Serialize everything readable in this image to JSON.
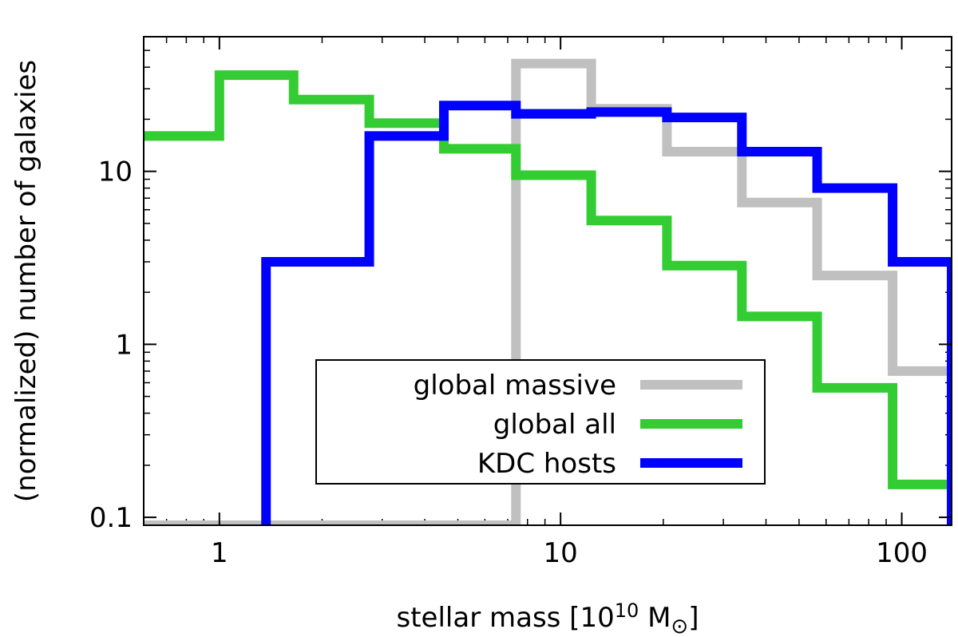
{
  "chart_data": {
    "type": "histogram-step",
    "xscale": "log",
    "yscale": "log",
    "xlim": [
      0.6,
      140
    ],
    "ylim": [
      0.09,
      60
    ],
    "xticks": [
      1,
      10,
      100
    ],
    "xtick_labels": [
      "1",
      "10",
      "100"
    ],
    "yticks": [
      0.1,
      1,
      10
    ],
    "ytick_labels": [
      "0.1",
      "1",
      "10"
    ],
    "xlabel_prefix": "stellar mass [10",
    "xlabel_exponent": "10",
    "xlabel_unit": " M",
    "xlabel_symbol": "⊙",
    "xlabel_suffix": "]",
    "ylabel": "(normalized) number of galaxies",
    "legend_location": "lower center",
    "series": [
      {
        "name": "global massive",
        "color": "#c0c0c0",
        "edges": [
          0.6,
          7.4,
          12.3,
          20.5,
          34.0,
          56.5,
          94.0,
          140
        ],
        "values": [
          0.09,
          42,
          23,
          13,
          6.6,
          2.5,
          0.7
        ]
      },
      {
        "name": "global all",
        "color": "#33cc33",
        "edges": [
          0.6,
          1.0,
          1.65,
          2.75,
          4.55,
          7.4,
          12.3,
          20.5,
          34.0,
          56.5,
          94.0,
          140
        ],
        "values": [
          16,
          36,
          26,
          19,
          13.5,
          9.5,
          5.2,
          2.85,
          1.45,
          0.56,
          0.155
        ]
      },
      {
        "name": "KDC hosts",
        "color": "#0000ff",
        "edges": [
          1.37,
          2.75,
          4.55,
          7.4,
          12.3,
          20.5,
          34.0,
          56.5,
          94.0,
          140
        ],
        "values": [
          3.0,
          16,
          24,
          21.5,
          22,
          20.5,
          13,
          8.0,
          3.0
        ]
      }
    ]
  }
}
